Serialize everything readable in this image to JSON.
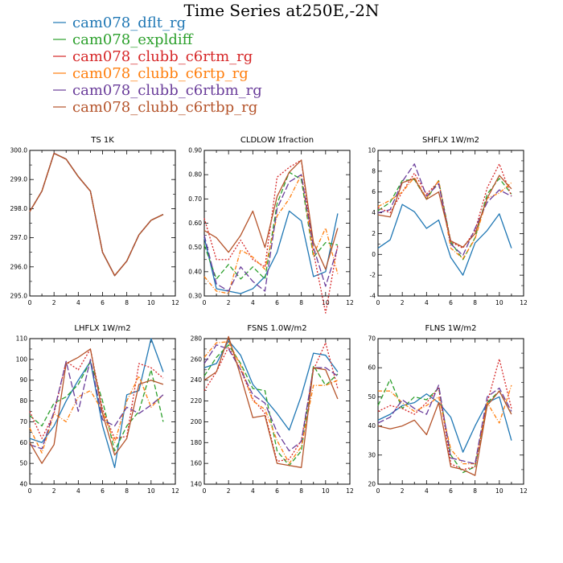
{
  "figure_title": "Time Series at250E,-2N",
  "legend": [
    {
      "label": "cam078_dflt_rg",
      "color": "#1f77b4",
      "dash": ""
    },
    {
      "label": "cam078_expldiff",
      "color": "#2ca02c",
      "dash": "6,3"
    },
    {
      "label": "cam078_clubb_c6rtm_rg",
      "color": "#d62728",
      "dash": "2,2"
    },
    {
      "label": "cam078_clubb_c6rtp_rg",
      "color": "#ff7f0e",
      "dash": "5,2,1,2"
    },
    {
      "label": "cam078_clubb_c6rtbm_rg",
      "color": "#6a3d9a",
      "dash": "8,3"
    },
    {
      "label": "cam078_clubb_c6rtbp_rg",
      "color": "#b5542b",
      "dash": ""
    }
  ],
  "chart_data": [
    {
      "type": "line",
      "title": "TS   1K",
      "x": [
        0,
        1,
        2,
        3,
        4,
        5,
        6,
        7,
        8,
        9,
        10,
        11
      ],
      "xlim": [
        0,
        12
      ],
      "xticks": [
        0,
        2,
        4,
        6,
        8,
        10,
        12
      ],
      "ylim": [
        295.0,
        300.0
      ],
      "yticks": [
        "295.0",
        "296.0",
        "297.0",
        "298.0",
        "299.0",
        "300.0"
      ],
      "series": [
        {
          "name": "cam078_dflt_rg",
          "values": [
            297.9,
            298.6,
            299.9,
            299.7,
            299.1,
            298.6,
            296.5,
            295.7,
            296.2,
            297.1,
            297.6,
            297.8
          ]
        },
        {
          "name": "cam078_expldiff",
          "values": [
            297.9,
            298.6,
            299.9,
            299.7,
            299.1,
            298.6,
            296.5,
            295.7,
            296.2,
            297.1,
            297.6,
            297.8
          ]
        },
        {
          "name": "cam078_clubb_c6rtm_rg",
          "values": [
            297.9,
            298.6,
            299.9,
            299.7,
            299.1,
            298.6,
            296.5,
            295.7,
            296.2,
            297.1,
            297.6,
            297.8
          ]
        },
        {
          "name": "cam078_clubb_c6rtp_rg",
          "values": [
            297.9,
            298.6,
            299.9,
            299.7,
            299.1,
            298.6,
            296.5,
            295.7,
            296.2,
            297.1,
            297.6,
            297.8
          ]
        },
        {
          "name": "cam078_clubb_c6rtbm_rg",
          "values": [
            297.9,
            298.6,
            299.9,
            299.7,
            299.1,
            298.6,
            296.5,
            295.7,
            296.2,
            297.1,
            297.6,
            297.8
          ]
        },
        {
          "name": "cam078_clubb_c6rtbp_rg",
          "values": [
            297.9,
            298.6,
            299.9,
            299.7,
            299.1,
            298.6,
            296.5,
            295.7,
            296.2,
            297.1,
            297.6,
            297.8
          ]
        }
      ]
    },
    {
      "type": "line",
      "title": "CLDLOW   1fraction",
      "x": [
        0,
        1,
        2,
        3,
        4,
        5,
        6,
        7,
        8,
        9,
        10,
        11
      ],
      "xlim": [
        0,
        12
      ],
      "xticks": [
        0,
        2,
        4,
        6,
        8,
        10,
        12
      ],
      "ylim": [
        0.3,
        0.9
      ],
      "yticks": [
        "0.30",
        "0.40",
        "0.50",
        "0.60",
        "0.70",
        "0.80",
        "0.90"
      ],
      "series": [
        {
          "name": "cam078_dflt_rg",
          "values": [
            0.54,
            0.33,
            0.32,
            0.31,
            0.33,
            0.38,
            0.48,
            0.65,
            0.61,
            0.38,
            0.4,
            0.64
          ]
        },
        {
          "name": "cam078_expldiff",
          "values": [
            0.51,
            0.37,
            0.43,
            0.37,
            0.42,
            0.37,
            0.68,
            0.81,
            0.78,
            0.46,
            0.52,
            0.51
          ]
        },
        {
          "name": "cam078_clubb_c6rtm_rg",
          "values": [
            0.62,
            0.45,
            0.45,
            0.53,
            0.45,
            0.42,
            0.79,
            0.83,
            0.86,
            0.48,
            0.23,
            0.51
          ]
        },
        {
          "name": "cam078_clubb_c6rtp_rg",
          "values": [
            0.38,
            0.32,
            0.31,
            0.49,
            0.46,
            0.41,
            0.63,
            0.7,
            0.8,
            0.47,
            0.58,
            0.39
          ]
        },
        {
          "name": "cam078_clubb_c6rtbm_rg",
          "values": [
            0.55,
            0.35,
            0.32,
            0.42,
            0.36,
            0.32,
            0.66,
            0.77,
            0.8,
            0.5,
            0.34,
            0.5
          ]
        },
        {
          "name": "cam078_clubb_c6rtbp_rg",
          "values": [
            0.57,
            0.54,
            0.48,
            0.55,
            0.65,
            0.5,
            0.71,
            0.81,
            0.86,
            0.52,
            0.41,
            0.58
          ]
        }
      ]
    },
    {
      "type": "line",
      "title": "SHFLX   1W/m2",
      "x": [
        0,
        1,
        2,
        3,
        4,
        5,
        6,
        7,
        8,
        9,
        10,
        11
      ],
      "xlim": [
        0,
        12
      ],
      "xticks": [
        0,
        2,
        4,
        6,
        8,
        10,
        12
      ],
      "ylim": [
        -4,
        10
      ],
      "yticks": [
        "-4",
        "-2",
        "0",
        "2",
        "4",
        "6",
        "8",
        "10"
      ],
      "series": [
        {
          "name": "cam078_dflt_rg",
          "values": [
            0.6,
            1.4,
            4.8,
            4.1,
            2.5,
            3.3,
            -0.3,
            -2.0,
            1.1,
            2.3,
            3.9,
            0.6
          ]
        },
        {
          "name": "cam078_expldiff",
          "values": [
            4.2,
            5.0,
            7.1,
            7.2,
            5.3,
            7.1,
            1.2,
            -0.5,
            1.6,
            5.8,
            7.3,
            5.8
          ]
        },
        {
          "name": "cam078_clubb_c6rtm_rg",
          "values": [
            4.5,
            4.0,
            6.0,
            7.8,
            5.8,
            7.0,
            1.2,
            0.6,
            2.3,
            6.4,
            8.7,
            5.6
          ]
        },
        {
          "name": "cam078_clubb_c6rtp_rg",
          "values": [
            4.6,
            5.2,
            6.0,
            7.4,
            5.4,
            7.1,
            0.6,
            -0.4,
            1.5,
            5.4,
            5.9,
            6.9
          ]
        },
        {
          "name": "cam078_clubb_c6rtbm_rg",
          "values": [
            4.0,
            4.3,
            7.0,
            8.7,
            5.6,
            6.8,
            1.0,
            -0.1,
            2.5,
            5.0,
            6.2,
            5.6
          ]
        },
        {
          "name": "cam078_clubb_c6rtbp_rg",
          "values": [
            3.8,
            3.6,
            6.9,
            7.3,
            5.3,
            6.0,
            1.3,
            0.7,
            2.0,
            5.4,
            7.6,
            6.3
          ]
        }
      ]
    },
    {
      "type": "line",
      "title": "LHFLX   1W/m2",
      "x": [
        0,
        1,
        2,
        3,
        4,
        5,
        6,
        7,
        8,
        9,
        10,
        11
      ],
      "xlim": [
        0,
        12
      ],
      "xticks": [
        0,
        2,
        4,
        6,
        8,
        10,
        12
      ],
      "ylim": [
        40,
        110
      ],
      "yticks": [
        "40",
        "50",
        "60",
        "70",
        "80",
        "90",
        "100",
        "110"
      ],
      "series": [
        {
          "name": "cam078_dflt_rg",
          "values": [
            62,
            60,
            68,
            80,
            90,
            99,
            68,
            48,
            83,
            85,
            110,
            94
          ]
        },
        {
          "name": "cam078_expldiff",
          "values": [
            73,
            68,
            79,
            82,
            88,
            99,
            80,
            56,
            68,
            75,
            95,
            70
          ]
        },
        {
          "name": "cam078_clubb_c6rtm_rg",
          "values": [
            75,
            62,
            74,
            99,
            95,
            105,
            76,
            62,
            63,
            98,
            96,
            91
          ]
        },
        {
          "name": "cam078_clubb_c6rtp_rg",
          "values": [
            67,
            55,
            74,
            70,
            82,
            85,
            75,
            60,
            80,
            92,
            77,
            83
          ]
        },
        {
          "name": "cam078_clubb_c6rtbm_rg",
          "values": [
            59,
            57,
            75,
            99,
            75,
            100,
            71,
            68,
            77,
            74,
            78,
            83
          ]
        },
        {
          "name": "cam078_clubb_c6rtbp_rg",
          "values": [
            60,
            50,
            59,
            98,
            101,
            105,
            74,
            54,
            62,
            88,
            90,
            88
          ]
        }
      ]
    },
    {
      "type": "line",
      "title": "FSNS   1.0W/m2",
      "x": [
        0,
        1,
        2,
        3,
        4,
        5,
        6,
        7,
        8,
        9,
        10,
        11
      ],
      "xlim": [
        0,
        12
      ],
      "xticks": [
        0,
        2,
        4,
        6,
        8,
        10,
        12
      ],
      "ylim": [
        140,
        280
      ],
      "yticks": [
        "140",
        "160",
        "180",
        "200",
        "220",
        "240",
        "260",
        "280"
      ],
      "series": [
        {
          "name": "cam078_dflt_rg",
          "values": [
            252,
            256,
            278,
            264,
            236,
            222,
            208,
            192,
            225,
            266,
            264,
            248
          ]
        },
        {
          "name": "cam078_expldiff",
          "values": [
            244,
            262,
            274,
            256,
            232,
            230,
            172,
            158,
            172,
            254,
            235,
            246
          ]
        },
        {
          "name": "cam078_clubb_c6rtm_rg",
          "values": [
            230,
            248,
            272,
            250,
            222,
            208,
            162,
            164,
            182,
            250,
            276,
            232
          ]
        },
        {
          "name": "cam078_clubb_c6rtp_rg",
          "values": [
            262,
            276,
            277,
            254,
            220,
            212,
            182,
            160,
            176,
            235,
            235,
            240
          ]
        },
        {
          "name": "cam078_clubb_c6rtbm_rg",
          "values": [
            256,
            274,
            270,
            250,
            226,
            218,
            190,
            172,
            181,
            252,
            252,
            244
          ]
        },
        {
          "name": "cam078_clubb_c6rtbp_rg",
          "values": [
            240,
            248,
            282,
            244,
            204,
            206,
            160,
            158,
            156,
            252,
            250,
            222
          ]
        }
      ]
    },
    {
      "type": "line",
      "title": "FLNS   1W/m2",
      "x": [
        0,
        1,
        2,
        3,
        4,
        5,
        6,
        7,
        8,
        9,
        10,
        11
      ],
      "xlim": [
        0,
        12
      ],
      "xticks": [
        0,
        2,
        4,
        6,
        8,
        10,
        12
      ],
      "ylim": [
        20,
        70
      ],
      "yticks": [
        "20",
        "30",
        "40",
        "50",
        "60",
        "70"
      ],
      "series": [
        {
          "name": "cam078_dflt_rg",
          "values": [
            42,
            44,
            47,
            48,
            51,
            48,
            43,
            31,
            40,
            48,
            50,
            35
          ]
        },
        {
          "name": "cam078_expldiff",
          "values": [
            47,
            56,
            46,
            50,
            49,
            53,
            30,
            24,
            26,
            48,
            52,
            44
          ]
        },
        {
          "name": "cam078_clubb_c6rtm_rg",
          "values": [
            45,
            47,
            46,
            44,
            48,
            53,
            27,
            25,
            26,
            48,
            63,
            46
          ]
        },
        {
          "name": "cam078_clubb_c6rtp_rg",
          "values": [
            52,
            52,
            48,
            45,
            47,
            50,
            32,
            27,
            27,
            48,
            41,
            54
          ]
        },
        {
          "name": "cam078_clubb_c6rtbm_rg",
          "values": [
            41,
            43,
            49,
            46,
            44,
            54,
            29,
            28,
            27,
            50,
            53,
            45
          ]
        },
        {
          "name": "cam078_clubb_c6rtbp_rg",
          "values": [
            40,
            39,
            40,
            42,
            37,
            48,
            26,
            25,
            23,
            47,
            52,
            44
          ]
        }
      ]
    }
  ]
}
